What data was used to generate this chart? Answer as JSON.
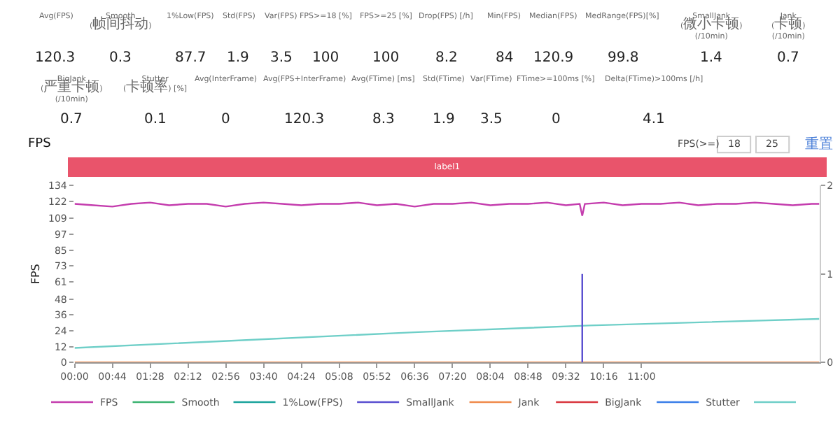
{
  "chart_data": {
    "type": "line",
    "title": "FPS",
    "ylabel": "FPS",
    "annotations": [
      "Avg(FPS)",
      "120.3",
      "Smooth(帧间抖动)",
      "0.3",
      "1%Low(FPS)",
      "87.7",
      "Std(FPS)",
      "1.9",
      "Var(FPS)",
      "3.5",
      "FPS>=18 [%]",
      "100",
      "FPS>=25 [%]",
      "100",
      "Drop(FPS) [/h]",
      "8.2",
      "Min(FPS)",
      "84",
      "Median(FPS)",
      "120.9",
      "MedRange(FPS)[%]",
      "99.8",
      "SmallJank(微小卡顿)\n(/10min)",
      "1.4",
      "Jank(卡顿)\n(/10min)",
      "0.7",
      "BigJank(严重卡顿)\n(/10min)",
      "0.7",
      "Stutter(卡顿率) [%]",
      "0.1",
      "Avg(InterFrame)",
      "0",
      "Avg(FPS+InterFrame)",
      "120.3",
      "Avg(FTime) [ms]",
      "8.3",
      "Std(FTime)",
      "1.9",
      "Var(FTime)",
      "3.5",
      "FTime>=100ms [%]",
      "0",
      "Delta(FTime)>100ms [/h]",
      "4.1",
      "FPS(>=)",
      "18",
      "25",
      "重置",
      "label1"
    ],
    "xlim": [
      0,
      867
    ],
    "xticks": [
      {
        "value": 0,
        "label": "00:00"
      },
      {
        "value": 44,
        "label": "00:44"
      },
      {
        "value": 88,
        "label": "01:28"
      },
      {
        "value": 132,
        "label": "02:12"
      },
      {
        "value": 176,
        "label": "02:56"
      },
      {
        "value": 220,
        "label": "03:40"
      },
      {
        "value": 264,
        "label": "04:24"
      },
      {
        "value": 308,
        "label": "05:08"
      },
      {
        "value": 352,
        "label": "05:52"
      },
      {
        "value": 396,
        "label": "06:36"
      },
      {
        "value": 440,
        "label": "07:20"
      },
      {
        "value": 484,
        "label": "08:04"
      },
      {
        "value": 528,
        "label": "08:48"
      },
      {
        "value": 572,
        "label": "09:32"
      },
      {
        "value": 616,
        "label": "10:16"
      },
      {
        "value": 660,
        "label": "11:00"
      }
    ],
    "ylim": [
      0,
      134
    ],
    "yticks": [
      0,
      12,
      24,
      36,
      48,
      61,
      73,
      85,
      97,
      109,
      122,
      134
    ],
    "y2lim": [
      0,
      2
    ],
    "y2ticks": [
      0,
      1,
      2
    ],
    "legend": "bottom",
    "series": [
      {
        "name": "FPS",
        "color": "#c43dae",
        "x": [
          0,
          22,
          44,
          66,
          88,
          110,
          132,
          154,
          176,
          198,
          220,
          242,
          264,
          286,
          308,
          330,
          352,
          374,
          396,
          418,
          440,
          462,
          484,
          506,
          528,
          550,
          572,
          588,
          591,
          594,
          616,
          638,
          660,
          682,
          704,
          726,
          748,
          770,
          792,
          814,
          836,
          858,
          867
        ],
        "values": [
          120,
          119,
          118,
          120,
          121,
          119,
          120,
          120,
          118,
          120,
          121,
          120,
          119,
          120,
          120,
          121,
          119,
          120,
          118,
          120,
          120,
          121,
          119,
          120,
          120,
          121,
          119,
          120,
          111,
          120,
          121,
          119,
          120,
          120,
          121,
          119,
          120,
          120,
          121,
          120,
          119,
          120,
          120
        ]
      },
      {
        "name": "Smooth",
        "color": "#3cb371",
        "axis": "y2"
      },
      {
        "name": "1%Low(FPS)",
        "color": "#1ba39c"
      },
      {
        "name": "SmallJank",
        "color": "#5a4fd0",
        "axis": "y2",
        "x": [
          591,
          591
        ],
        "values": [
          0,
          1
        ]
      },
      {
        "name": "Jank",
        "color": "#f08a4b",
        "axis": "y2",
        "x": [
          0,
          867
        ],
        "values": [
          0,
          0
        ]
      },
      {
        "name": "BigJank",
        "color": "#d9363e",
        "axis": "y2"
      },
      {
        "name": "Stutter",
        "color": "#3a7ee8",
        "axis": "y2"
      },
      {
        "color": "#6fcfc8",
        "x": [
          0,
          200,
          400,
          600,
          867
        ],
        "values": [
          11,
          17,
          23,
          28,
          33
        ]
      }
    ]
  }
}
